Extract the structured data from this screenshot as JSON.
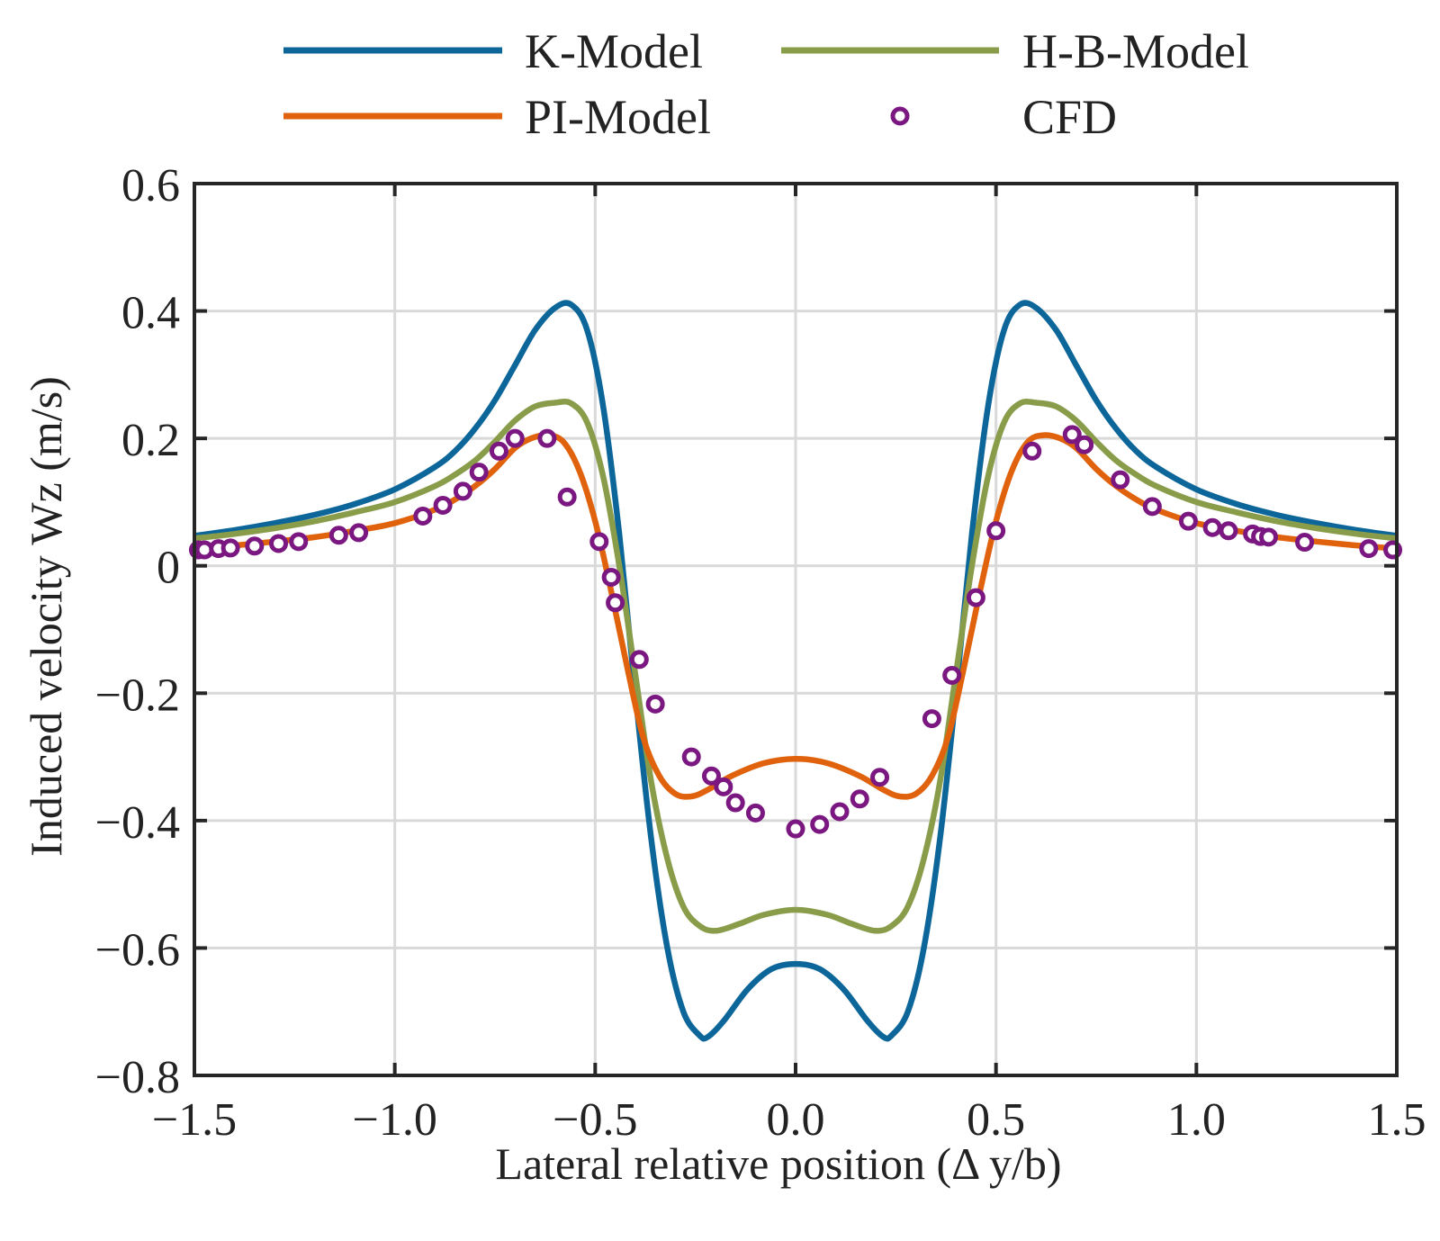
{
  "chart_data": {
    "type": "line",
    "title": "",
    "xlabel": "Lateral relative position (Δ y/b)",
    "ylabel": "Induced velocity Wz (m/s)",
    "xlim": [
      -1.5,
      1.5
    ],
    "ylim": [
      -0.8,
      0.6
    ],
    "xticks": [
      -1.5,
      -1.0,
      -0.5,
      0.0,
      0.5,
      1.0,
      1.5
    ],
    "xtick_labels": [
      "−1.5",
      "−1.0",
      "−0.5",
      "0.0",
      "0.5",
      "1.0",
      "1.5"
    ],
    "yticks": [
      -0.8,
      -0.6,
      -0.4,
      -0.2,
      0,
      0.2,
      0.4,
      0.6
    ],
    "ytick_labels": [
      "−0.8",
      "−0.6",
      "−0.4",
      "−0.2",
      "0",
      "0.2",
      "0.4",
      "0.6"
    ],
    "grid": true,
    "legend_position": "top",
    "series": [
      {
        "name": "K-Model",
        "kind": "line",
        "color": "#0c6699",
        "x": [
          -1.5,
          -1.4,
          -1.3,
          -1.2,
          -1.1,
          -1.0,
          -0.9,
          -0.85,
          -0.8,
          -0.75,
          -0.7,
          -0.65,
          -0.6,
          -0.56,
          -0.52,
          -0.48,
          -0.44,
          -0.4,
          -0.36,
          -0.32,
          -0.28,
          -0.24,
          -0.22,
          -0.18,
          -0.12,
          -0.06,
          0.0,
          0.06,
          0.12,
          0.18,
          0.22,
          0.24,
          0.28,
          0.32,
          0.36,
          0.4,
          0.44,
          0.48,
          0.52,
          0.56,
          0.6,
          0.65,
          0.7,
          0.75,
          0.8,
          0.85,
          0.9,
          1.0,
          1.1,
          1.2,
          1.3,
          1.4,
          1.5
        ],
        "y": [
          0.047,
          0.056,
          0.067,
          0.08,
          0.097,
          0.12,
          0.155,
          0.18,
          0.215,
          0.26,
          0.315,
          0.37,
          0.405,
          0.41,
          0.37,
          0.25,
          0.05,
          -0.2,
          -0.43,
          -0.6,
          -0.7,
          -0.737,
          -0.74,
          -0.715,
          -0.665,
          -0.633,
          -0.625,
          -0.633,
          -0.665,
          -0.715,
          -0.74,
          -0.737,
          -0.7,
          -0.6,
          -0.43,
          -0.2,
          0.05,
          0.25,
          0.37,
          0.41,
          0.405,
          0.37,
          0.315,
          0.26,
          0.215,
          0.18,
          0.155,
          0.12,
          0.097,
          0.08,
          0.067,
          0.056,
          0.047
        ]
      },
      {
        "name": "H-B-Model",
        "kind": "line",
        "color": "#899c4a",
        "x": [
          -1.5,
          -1.4,
          -1.3,
          -1.2,
          -1.1,
          -1.0,
          -0.9,
          -0.85,
          -0.8,
          -0.75,
          -0.7,
          -0.65,
          -0.6,
          -0.56,
          -0.52,
          -0.48,
          -0.44,
          -0.4,
          -0.36,
          -0.32,
          -0.28,
          -0.24,
          -0.2,
          -0.14,
          -0.08,
          0.0,
          0.08,
          0.14,
          0.2,
          0.24,
          0.28,
          0.32,
          0.36,
          0.4,
          0.44,
          0.48,
          0.52,
          0.56,
          0.6,
          0.65,
          0.7,
          0.75,
          0.8,
          0.85,
          0.9,
          1.0,
          1.1,
          1.2,
          1.3,
          1.4,
          1.5
        ],
        "y": [
          0.043,
          0.05,
          0.059,
          0.07,
          0.084,
          0.1,
          0.125,
          0.143,
          0.165,
          0.195,
          0.228,
          0.25,
          0.256,
          0.255,
          0.225,
          0.14,
          0.0,
          -0.17,
          -0.34,
          -0.46,
          -0.535,
          -0.565,
          -0.573,
          -0.562,
          -0.548,
          -0.54,
          -0.548,
          -0.562,
          -0.573,
          -0.565,
          -0.535,
          -0.46,
          -0.34,
          -0.17,
          0.0,
          0.14,
          0.225,
          0.255,
          0.256,
          0.25,
          0.228,
          0.195,
          0.165,
          0.143,
          0.125,
          0.1,
          0.084,
          0.07,
          0.059,
          0.05,
          0.043
        ]
      },
      {
        "name": "PI-Model",
        "kind": "line",
        "color": "#e0620d",
        "x": [
          -1.5,
          -1.4,
          -1.3,
          -1.2,
          -1.1,
          -1.0,
          -0.9,
          -0.85,
          -0.8,
          -0.75,
          -0.7,
          -0.66,
          -0.62,
          -0.58,
          -0.54,
          -0.5,
          -0.46,
          -0.42,
          -0.38,
          -0.34,
          -0.3,
          -0.26,
          -0.22,
          -0.16,
          -0.08,
          0.0,
          0.08,
          0.16,
          0.22,
          0.26,
          0.3,
          0.34,
          0.38,
          0.42,
          0.46,
          0.5,
          0.54,
          0.58,
          0.62,
          0.66,
          0.7,
          0.75,
          0.8,
          0.85,
          0.9,
          1.0,
          1.1,
          1.2,
          1.3,
          1.4,
          1.5
        ],
        "y": [
          0.027,
          0.032,
          0.038,
          0.045,
          0.055,
          0.067,
          0.088,
          0.104,
          0.125,
          0.152,
          0.185,
          0.2,
          0.205,
          0.195,
          0.15,
          0.07,
          -0.04,
          -0.16,
          -0.27,
          -0.33,
          -0.358,
          -0.362,
          -0.352,
          -0.33,
          -0.31,
          -0.303,
          -0.31,
          -0.33,
          -0.352,
          -0.362,
          -0.358,
          -0.33,
          -0.27,
          -0.16,
          -0.04,
          0.07,
          0.15,
          0.195,
          0.205,
          0.2,
          0.185,
          0.152,
          0.125,
          0.104,
          0.088,
          0.067,
          0.055,
          0.045,
          0.038,
          0.032,
          0.027
        ]
      },
      {
        "name": "CFD",
        "kind": "marker",
        "color": "#7b1780",
        "x": [
          -1.49,
          -1.475,
          -1.44,
          -1.41,
          -1.35,
          -1.29,
          -1.24,
          -1.14,
          -1.09,
          -0.93,
          -0.88,
          -0.83,
          -0.79,
          -0.74,
          -0.7,
          -0.62,
          -0.57,
          -0.49,
          -0.46,
          -0.45,
          -0.39,
          -0.35,
          -0.26,
          -0.21,
          -0.18,
          -0.15,
          -0.1,
          0.0,
          0.06,
          0.11,
          0.16,
          0.21,
          0.34,
          0.39,
          0.45,
          0.5,
          0.59,
          0.69,
          0.72,
          0.81,
          0.89,
          0.98,
          1.04,
          1.08,
          1.14,
          1.16,
          1.18,
          1.27,
          1.43,
          1.49
        ],
        "y": [
          0.025,
          0.025,
          0.027,
          0.028,
          0.031,
          0.035,
          0.038,
          0.048,
          0.052,
          0.078,
          0.095,
          0.117,
          0.147,
          0.18,
          0.2,
          0.2,
          0.108,
          0.038,
          -0.018,
          -0.058,
          -0.147,
          -0.217,
          -0.3,
          -0.33,
          -0.347,
          -0.372,
          -0.388,
          -0.413,
          -0.406,
          -0.386,
          -0.366,
          -0.332,
          -0.24,
          -0.172,
          -0.05,
          0.055,
          0.18,
          0.206,
          0.19,
          0.135,
          0.093,
          0.07,
          0.06,
          0.055,
          0.05,
          0.046,
          0.045,
          0.037,
          0.027,
          0.025
        ]
      }
    ]
  }
}
